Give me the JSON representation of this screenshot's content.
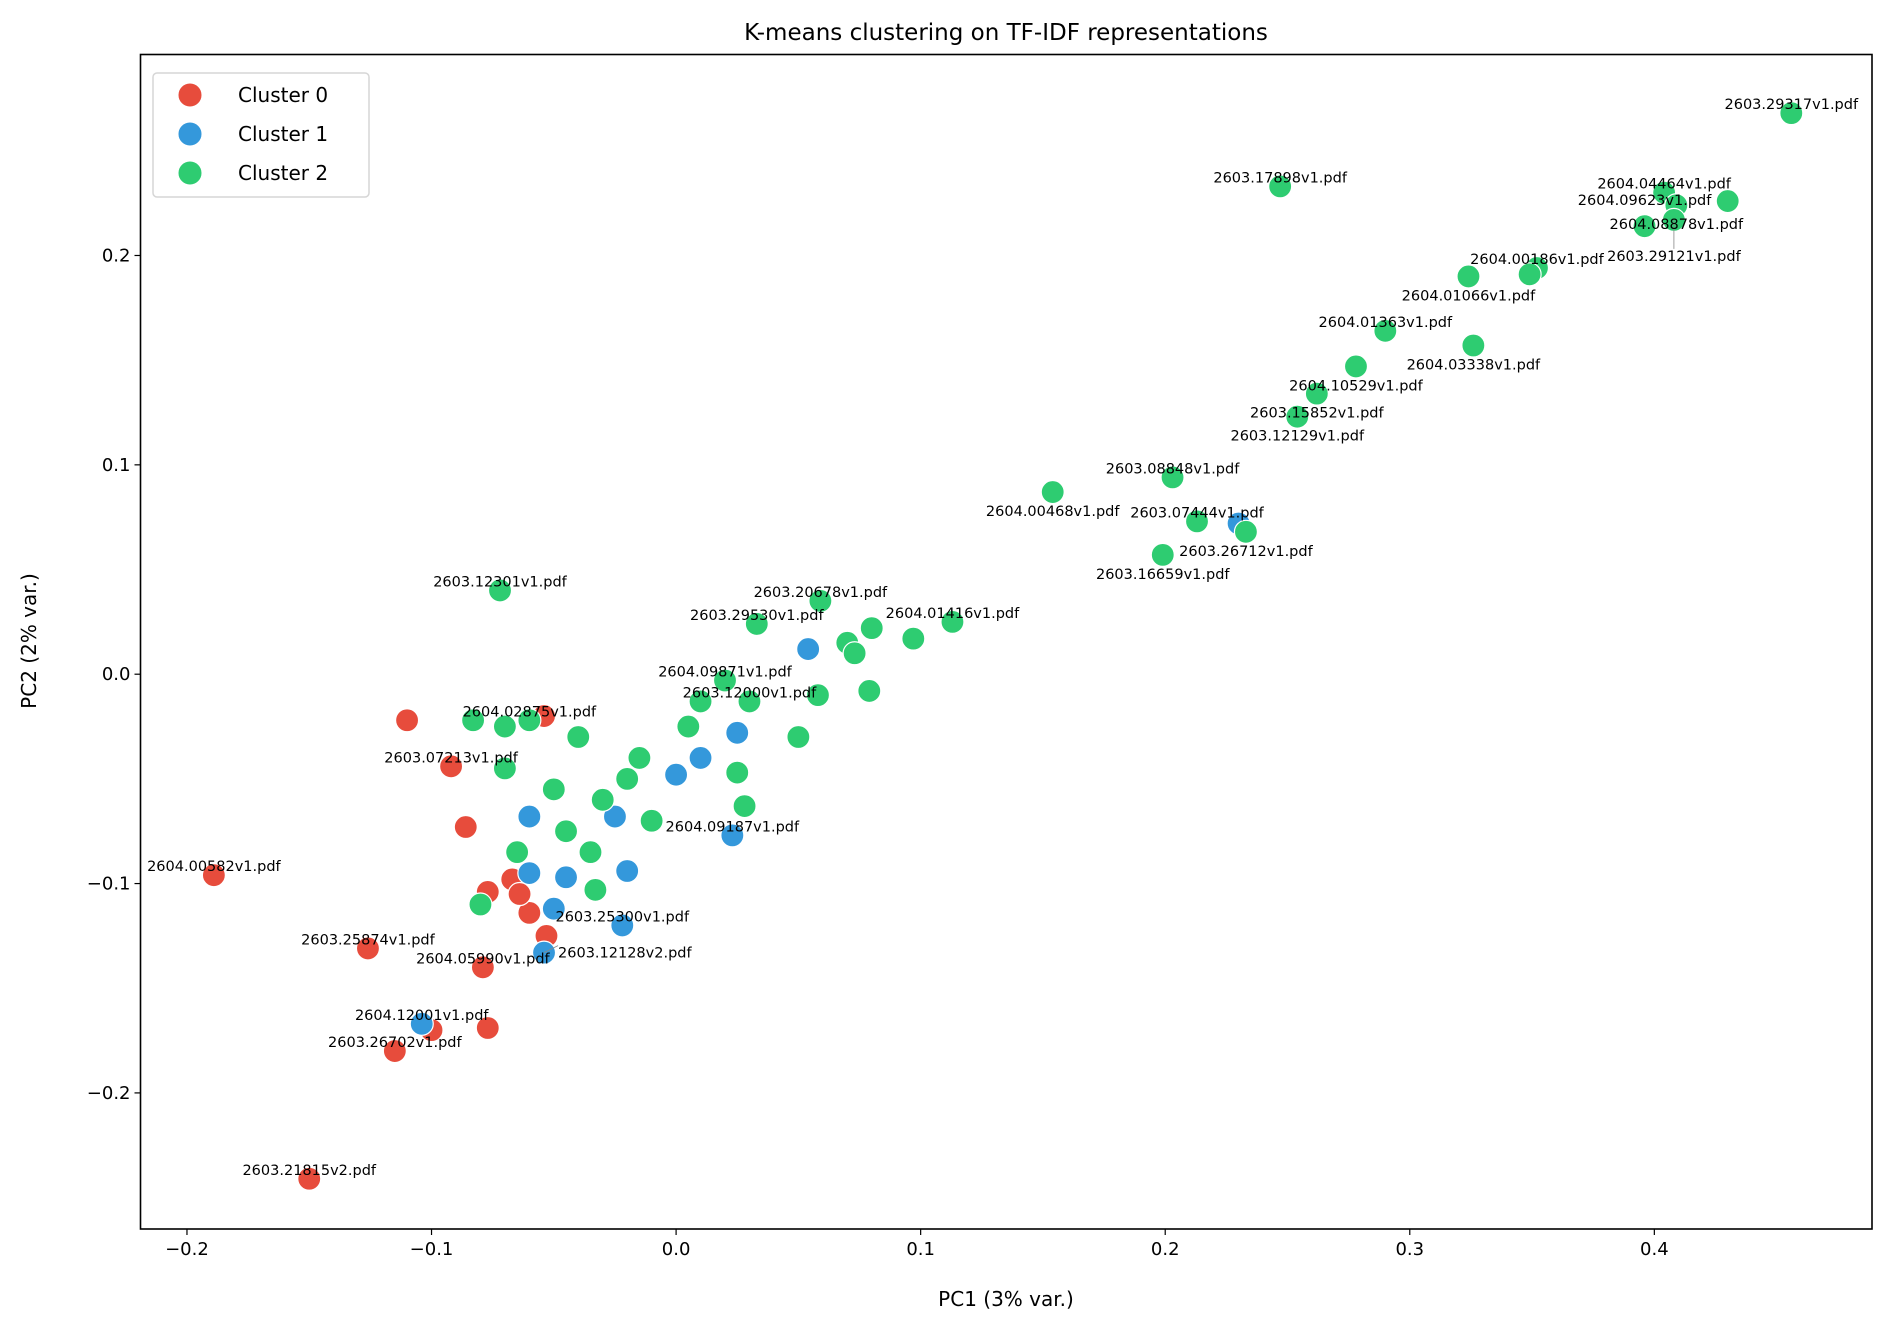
{
  "chart_data": {
    "type": "scatter",
    "title": "K-means clustering on TF-IDF representations",
    "xlabel": "PC1 (3% var.)",
    "ylabel": "PC2 (2% var.)",
    "xlim": [
      -0.219,
      0.489
    ],
    "ylim": [
      -0.265,
      0.296
    ],
    "xticks": [
      -0.2,
      -0.1,
      0.0,
      0.1,
      0.2,
      0.3,
      0.4
    ],
    "xtick_labels": [
      "−0.2",
      "−0.1",
      "0.0",
      "0.1",
      "0.2",
      "0.3",
      "0.4"
    ],
    "yticks": [
      -0.2,
      -0.1,
      0.0,
      0.1,
      0.2
    ],
    "ytick_labels": [
      "−0.2",
      "−0.1",
      "0.0",
      "0.1",
      "0.2"
    ],
    "grid": false,
    "legend_position": "top-left",
    "series": [
      {
        "name": "Cluster 0",
        "color": "#e74c3c",
        "points": [
          {
            "x": -0.189,
            "y": -0.096,
            "label": "2604.00582v1.pdf"
          },
          {
            "x": -0.15,
            "y": -0.241,
            "label": "2603.21815v2.pdf"
          },
          {
            "x": -0.126,
            "y": -0.131,
            "label": "2603.25874v1.pdf"
          },
          {
            "x": -0.115,
            "y": -0.18,
            "label": "2603.26702v1.pdf"
          },
          {
            "x": -0.079,
            "y": -0.14,
            "label": "2604.05990v1.pdf"
          },
          {
            "x": -0.092,
            "y": -0.044,
            "label": "2603.07213v1.pdf"
          },
          {
            "x": -0.077,
            "y": -0.169
          },
          {
            "x": -0.1,
            "y": -0.17
          },
          {
            "x": -0.11,
            "y": -0.022
          },
          {
            "x": -0.086,
            "y": -0.073
          },
          {
            "x": -0.077,
            "y": -0.104
          },
          {
            "x": -0.067,
            "y": -0.098
          },
          {
            "x": -0.06,
            "y": -0.114
          },
          {
            "x": -0.053,
            "y": -0.125
          },
          {
            "x": -0.054,
            "y": -0.02
          },
          {
            "x": -0.064,
            "y": -0.105
          }
        ]
      },
      {
        "name": "Cluster 1",
        "color": "#3498db",
        "points": [
          {
            "x": -0.104,
            "y": -0.167,
            "label": "2604.12001v1.pdf"
          },
          {
            "x": -0.054,
            "y": -0.133,
            "label": "2603.12128v2.pdf"
          },
          {
            "x": -0.022,
            "y": -0.12,
            "label": "2603.25300v1.pdf"
          },
          {
            "x": 0.023,
            "y": -0.077,
            "label": "2604.09187v1.pdf"
          },
          {
            "x": 0.054,
            "y": 0.012
          },
          {
            "x": 0.23,
            "y": 0.072
          },
          {
            "x": -0.02,
            "y": -0.094
          },
          {
            "x": -0.045,
            "y": -0.097
          },
          {
            "x": -0.06,
            "y": -0.095
          },
          {
            "x": -0.05,
            "y": -0.112
          },
          {
            "x": -0.06,
            "y": -0.068
          },
          {
            "x": -0.025,
            "y": -0.068
          },
          {
            "x": 0.0,
            "y": -0.048
          },
          {
            "x": 0.025,
            "y": -0.028
          },
          {
            "x": 0.01,
            "y": -0.04
          }
        ]
      },
      {
        "name": "Cluster 2",
        "color": "#2ecc71",
        "points": [
          {
            "x": 0.456,
            "y": 0.268,
            "label": "2603.29317v1.pdf"
          },
          {
            "x": 0.247,
            "y": 0.233,
            "label": "2603.17898v1.pdf"
          },
          {
            "x": 0.404,
            "y": 0.23,
            "label": "2604.04464v1.pdf"
          },
          {
            "x": 0.43,
            "y": 0.226
          },
          {
            "x": 0.409,
            "y": 0.224,
            "label": "2604.08878v1.pdf"
          },
          {
            "x": 0.408,
            "y": 0.217,
            "label": "2603.29121v1.pdf"
          },
          {
            "x": 0.396,
            "y": 0.214,
            "label": "2604.09623v1.pdf"
          },
          {
            "x": 0.352,
            "y": 0.194,
            "label": "2604.00186v1.pdf"
          },
          {
            "x": 0.349,
            "y": 0.191
          },
          {
            "x": 0.324,
            "y": 0.19,
            "label": "2604.01066v1.pdf"
          },
          {
            "x": 0.29,
            "y": 0.164,
            "label": "2604.01363v1.pdf"
          },
          {
            "x": 0.326,
            "y": 0.157,
            "label": "2604.03338v1.pdf"
          },
          {
            "x": 0.278,
            "y": 0.147,
            "label": "2604.10529v1.pdf"
          },
          {
            "x": 0.262,
            "y": 0.134,
            "label": "2603.15852v1.pdf"
          },
          {
            "x": 0.254,
            "y": 0.123,
            "label": "2603.12129v1.pdf"
          },
          {
            "x": 0.203,
            "y": 0.094,
            "label": "2603.08848v1.pdf"
          },
          {
            "x": 0.154,
            "y": 0.087,
            "label": "2604.00468v1.pdf"
          },
          {
            "x": 0.213,
            "y": 0.073,
            "label": "2603.07444v1.pdf"
          },
          {
            "x": 0.233,
            "y": 0.068,
            "label": "2603.26712v1.pdf"
          },
          {
            "x": 0.199,
            "y": 0.057,
            "label": "2603.16659v1.pdf"
          },
          {
            "x": -0.072,
            "y": 0.04,
            "label": "2603.12301v1.pdf"
          },
          {
            "x": 0.059,
            "y": 0.035,
            "label": "2603.20678v1.pdf"
          },
          {
            "x": 0.033,
            "y": 0.024,
            "label": "2603.29530v1.pdf"
          },
          {
            "x": 0.113,
            "y": 0.025,
            "label": "2604.01416v1.pdf"
          },
          {
            "x": 0.097,
            "y": 0.017
          },
          {
            "x": 0.07,
            "y": 0.015
          },
          {
            "x": 0.073,
            "y": 0.01
          },
          {
            "x": 0.08,
            "y": 0.022
          },
          {
            "x": 0.02,
            "y": -0.003,
            "label": "2604.09871v1.pdf"
          },
          {
            "x": 0.079,
            "y": -0.008
          },
          {
            "x": 0.058,
            "y": -0.01
          },
          {
            "x": 0.03,
            "y": -0.013,
            "label": "2603.12000v1.pdf"
          },
          {
            "x": 0.01,
            "y": -0.013
          },
          {
            "x": -0.06,
            "y": -0.022,
            "label": "2604.02875v1.pdf"
          },
          {
            "x": -0.083,
            "y": -0.022
          },
          {
            "x": -0.07,
            "y": -0.025
          },
          {
            "x": 0.05,
            "y": -0.03
          },
          {
            "x": 0.025,
            "y": -0.047
          },
          {
            "x": 0.028,
            "y": -0.063
          },
          {
            "x": -0.033,
            "y": -0.103
          },
          {
            "x": -0.08,
            "y": -0.11
          },
          {
            "x": -0.07,
            "y": -0.045
          },
          {
            "x": -0.05,
            "y": -0.055
          },
          {
            "x": -0.04,
            "y": -0.03
          },
          {
            "x": -0.03,
            "y": -0.06
          },
          {
            "x": -0.015,
            "y": -0.04
          },
          {
            "x": -0.045,
            "y": -0.075
          },
          {
            "x": -0.01,
            "y": -0.07
          },
          {
            "x": -0.065,
            "y": -0.085
          },
          {
            "x": -0.035,
            "y": -0.085
          },
          {
            "x": 0.005,
            "y": -0.025
          },
          {
            "x": -0.02,
            "y": -0.05
          }
        ]
      }
    ]
  }
}
